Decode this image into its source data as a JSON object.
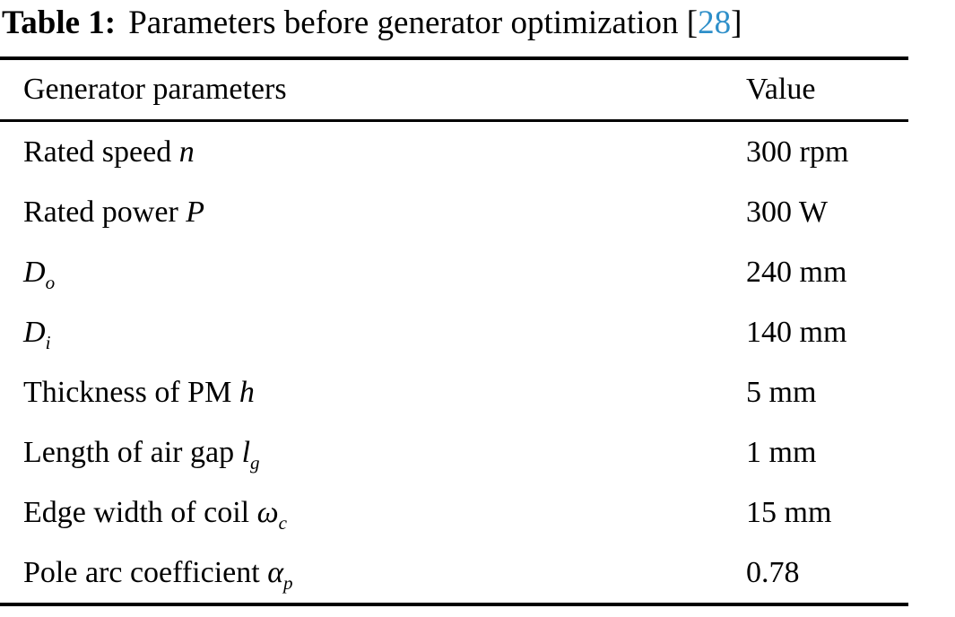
{
  "title": {
    "prefix": "Table 1:",
    "caption": "Parameters before generator optimization",
    "citation_open": "[",
    "citation_number": "28",
    "citation_close": "]"
  },
  "colors": {
    "text": "#000000",
    "rule": "#000000",
    "citation_blue": "#2E8FC9"
  },
  "table": {
    "columns": {
      "param_header": "Generator parameters",
      "value_header": "Value"
    },
    "rows": [
      {
        "label": "Rated speed",
        "symbol": "n",
        "sub": "",
        "value": "300 rpm"
      },
      {
        "label": "Rated power",
        "symbol": "P",
        "sub": "",
        "value": "300 W"
      },
      {
        "label": "",
        "symbol": "D",
        "sub": "o",
        "value": "240 mm"
      },
      {
        "label": "",
        "symbol": "D",
        "sub": "i",
        "value": "140 mm"
      },
      {
        "label": "Thickness of PM",
        "symbol": "h",
        "sub": "",
        "value": "5 mm"
      },
      {
        "label": "Length of air gap",
        "symbol": "l",
        "sub": "g",
        "value": "1 mm"
      },
      {
        "label": "Edge width of coil",
        "symbol": "ω",
        "sub": "c",
        "value": "15 mm"
      },
      {
        "label": "Pole arc coefficient",
        "symbol": "α",
        "sub": "p",
        "value": "0.78"
      }
    ]
  }
}
